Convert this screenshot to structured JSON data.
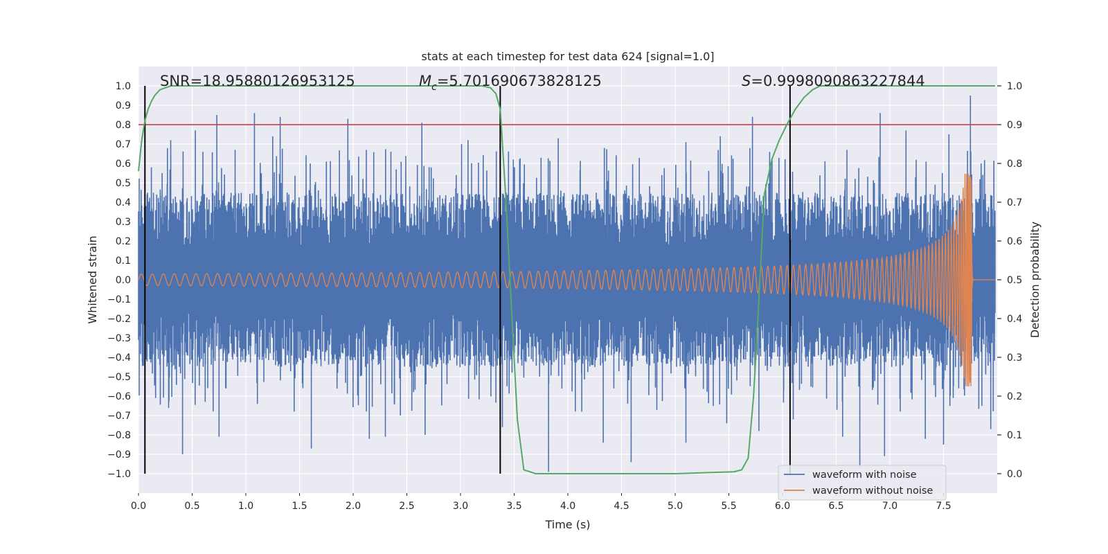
{
  "chart_data": {
    "type": "line",
    "title": "stats at each timestep for test data 624 [signal=1.0]",
    "xlabel": "Time (s)",
    "ylabel_left": "Whitened strain",
    "ylabel_right": "Detection probability",
    "xlim": [
      0.0,
      8.0
    ],
    "ylim_left": [
      -1.1,
      1.1
    ],
    "ylim_right": [
      -0.05,
      1.05
    ],
    "x_ticks": [
      0.0,
      0.5,
      1.0,
      1.5,
      2.0,
      2.5,
      3.0,
      3.5,
      4.0,
      4.5,
      5.0,
      5.5,
      6.0,
      6.5,
      7.0,
      7.5
    ],
    "x_tick_labels": [
      "0.0",
      "0.5",
      "1.0",
      "1.5",
      "2.0",
      "2.5",
      "3.0",
      "3.5",
      "4.0",
      "4.5",
      "5.0",
      "5.5",
      "6.0",
      "6.5",
      "7.0",
      "7.5"
    ],
    "y_left_ticks": [
      1.0,
      0.9,
      0.8,
      0.7,
      0.6,
      0.5,
      0.4,
      0.3,
      0.2,
      0.1,
      0.0,
      -0.1,
      -0.2,
      -0.3,
      -0.4,
      -0.5,
      -0.6,
      -0.7,
      -0.8,
      -0.9,
      -1.0
    ],
    "y_left_tick_labels": [
      "1.0",
      "0.9",
      "0.8",
      "0.7",
      "0.6",
      "0.5",
      "0.4",
      "0.3",
      "0.2",
      "0.1",
      "0.0",
      "−0.1",
      "−0.2",
      "−0.3",
      "−0.4",
      "−0.5",
      "−0.6",
      "−0.7",
      "−0.8",
      "−0.9",
      "−1.0"
    ],
    "y_right_ticks": [
      1.0,
      0.9,
      0.8,
      0.7,
      0.6,
      0.5,
      0.4,
      0.3,
      0.2,
      0.1,
      0.0
    ],
    "y_right_tick_labels": [
      "1.0",
      "0.9",
      "0.8",
      "0.7",
      "0.6",
      "0.5",
      "0.4",
      "0.3",
      "0.2",
      "0.1",
      "0.0"
    ],
    "annotations": {
      "snr_text": "SNR=18.95880126953125",
      "mc_symbol": "M",
      "mc_subscript": "c",
      "mc_value": "=5.701690673828125",
      "s_symbol": "S",
      "s_value": "=0.9998090863227844"
    },
    "threshold_line": {
      "y": 0.9,
      "axis": "right",
      "color": "#c44e52"
    },
    "vertical_markers_x": [
      0.06,
      3.37,
      6.07
    ],
    "series": [
      {
        "name": "waveform with noise",
        "color": "#4c72b0",
        "kind": "noise",
        "y_axis": "left",
        "envelope_abs_max": 0.95,
        "dense_band": [
          -0.31,
          0.31
        ],
        "peaks": [
          [
            0.06,
            -0.68
          ],
          [
            0.08,
            0.44
          ],
          [
            0.12,
            0.58
          ],
          [
            0.22,
            0.55
          ],
          [
            0.3,
            0.72
          ],
          [
            0.41,
            -0.9
          ],
          [
            0.53,
            0.77
          ],
          [
            0.6,
            0.66
          ],
          [
            0.73,
            0.85
          ],
          [
            0.75,
            -0.81
          ],
          [
            0.9,
            0.67
          ],
          [
            1.08,
            0.86
          ],
          [
            1.25,
            0.74
          ],
          [
            1.32,
            0.84
          ],
          [
            1.45,
            -0.68
          ],
          [
            1.6,
            0.6
          ],
          [
            1.61,
            -0.87
          ],
          [
            1.75,
            0.61
          ],
          [
            1.95,
            0.83
          ],
          [
            2.15,
            -0.82
          ],
          [
            2.3,
            -0.81
          ],
          [
            2.44,
            -0.7
          ],
          [
            2.64,
            0.81
          ],
          [
            2.67,
            -0.8
          ],
          [
            3.01,
            0.7
          ],
          [
            3.07,
            0.72
          ],
          [
            3.37,
            0.56
          ],
          [
            3.39,
            -0.76
          ],
          [
            3.55,
            0.62
          ],
          [
            3.82,
            -0.99
          ],
          [
            3.91,
            0.73
          ],
          [
            4.13,
            -0.68
          ],
          [
            4.34,
            0.68
          ],
          [
            4.33,
            -0.84
          ],
          [
            4.59,
            -0.94
          ],
          [
            5.1,
            0.71
          ],
          [
            5.1,
            -0.84
          ],
          [
            5.42,
            0.74
          ],
          [
            5.48,
            -0.74
          ],
          [
            5.72,
            0.84
          ],
          [
            5.78,
            -0.78
          ],
          [
            5.88,
            0.66
          ],
          [
            6.1,
            -0.72
          ],
          [
            6.56,
            -0.81
          ],
          [
            6.6,
            0.67
          ],
          [
            6.72,
            -0.97
          ],
          [
            6.91,
            0.86
          ],
          [
            6.95,
            -0.91
          ],
          [
            7.15,
            0.77
          ],
          [
            7.33,
            -0.82
          ],
          [
            7.5,
            -0.85
          ],
          [
            7.55,
            0.75
          ],
          [
            7.75,
            0.95
          ],
          [
            7.85,
            0.6
          ],
          [
            7.94,
            -0.77
          ]
        ]
      },
      {
        "name": "waveform without noise",
        "color": "#dd8452",
        "kind": "chirp",
        "y_axis": "left",
        "amplitude_start": 0.03,
        "merger_time": 7.76,
        "peak_amplitude": 0.55,
        "cycles_visible": 120
      },
      {
        "name": "detection probability",
        "color": "#55a868",
        "y_axis": "right",
        "x": [
          0.0,
          0.03,
          0.06,
          0.09,
          0.12,
          0.15,
          0.2,
          0.25,
          0.3,
          0.4,
          0.6,
          1.0,
          2.0,
          3.0,
          3.2,
          3.28,
          3.33,
          3.37,
          3.42,
          3.48,
          3.53,
          3.59,
          3.7,
          4.0,
          5.0,
          5.55,
          5.62,
          5.68,
          5.73,
          5.78,
          5.83,
          5.9,
          5.97,
          6.04,
          6.12,
          6.2,
          6.28,
          6.35,
          6.45,
          6.6,
          7.0,
          7.5,
          7.98
        ],
        "y": [
          0.78,
          0.86,
          0.91,
          0.94,
          0.96,
          0.975,
          0.99,
          0.995,
          1.0,
          1.0,
          1.0,
          1.0,
          1.0,
          1.0,
          1.0,
          0.995,
          0.98,
          0.94,
          0.72,
          0.4,
          0.14,
          0.01,
          0.0,
          0.0,
          0.0,
          0.005,
          0.01,
          0.04,
          0.2,
          0.45,
          0.72,
          0.81,
          0.86,
          0.9,
          0.94,
          0.97,
          0.99,
          1.0,
          1.0,
          1.0,
          1.0,
          1.0,
          1.0
        ]
      }
    ],
    "legend": {
      "position": "lower-right",
      "entries": [
        {
          "label": "waveform with noise",
          "color": "#4c72b0"
        },
        {
          "label": "waveform without noise",
          "color": "#dd8452"
        }
      ]
    },
    "grid": true,
    "style": {
      "plot_background": "#eaeaf2",
      "grid_color": "#ffffff"
    }
  }
}
